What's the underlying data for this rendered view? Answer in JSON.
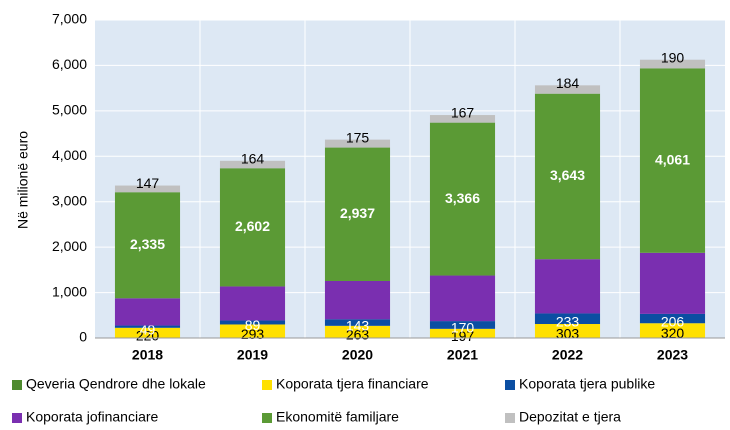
{
  "chart_data": {
    "type": "stacked_bar",
    "y_label": "Në milionë euro",
    "categories": [
      "2018",
      "2019",
      "2020",
      "2021",
      "2022",
      "2023"
    ],
    "series": [
      {
        "name": "Qeveria Qendrore dhe lokale",
        "color": "#4e8a2e",
        "values": [
          5,
          5,
          5,
          5,
          5,
          5
        ]
      },
      {
        "name": "Koporata tjera financiare",
        "color": "#ffe000",
        "values": [
          220,
          293,
          263,
          197,
          303,
          320
        ],
        "value_labels": [
          "220",
          "293",
          "263",
          "197",
          "303",
          "320"
        ]
      },
      {
        "name": "Koporata tjera publike",
        "color": "#0b4ea2",
        "values": [
          49,
          89,
          143,
          170,
          233,
          206
        ],
        "value_labels": [
          "49",
          "89",
          "143",
          "170",
          "233",
          "206"
        ]
      },
      {
        "name": "Koporata jofinanciare",
        "color": "#7a2fb0",
        "values": [
          600,
          748,
          844,
          1003,
          1194,
          1344
        ]
      },
      {
        "name": "Ekonomitë familjare",
        "color": "#5b9a35",
        "values": [
          2335,
          2602,
          2937,
          3366,
          3643,
          4061
        ],
        "value_labels": [
          "2,335",
          "2,602",
          "2,937",
          "3,366",
          "3,643",
          "4,061"
        ]
      },
      {
        "name": "Depozitat e tjera",
        "color": "#c0c0c0",
        "values": [
          147,
          164,
          175,
          167,
          184,
          190
        ],
        "value_labels": [
          "147",
          "164",
          "175",
          "167",
          "184",
          "190"
        ]
      }
    ],
    "ylim": [
      0,
      7000
    ],
    "yticks": [
      0,
      {
        "value": 1000,
        "label": "1,000"
      },
      {
        "value": 2000,
        "label": "2,000"
      },
      {
        "value": 3000,
        "label": "3,000"
      },
      {
        "value": 4000,
        "label": "4,000"
      },
      {
        "value": 5000,
        "label": "5,000"
      },
      {
        "value": 6000,
        "label": "6,000"
      },
      {
        "value": 7000,
        "label": "7,000"
      }
    ],
    "grid": true
  }
}
